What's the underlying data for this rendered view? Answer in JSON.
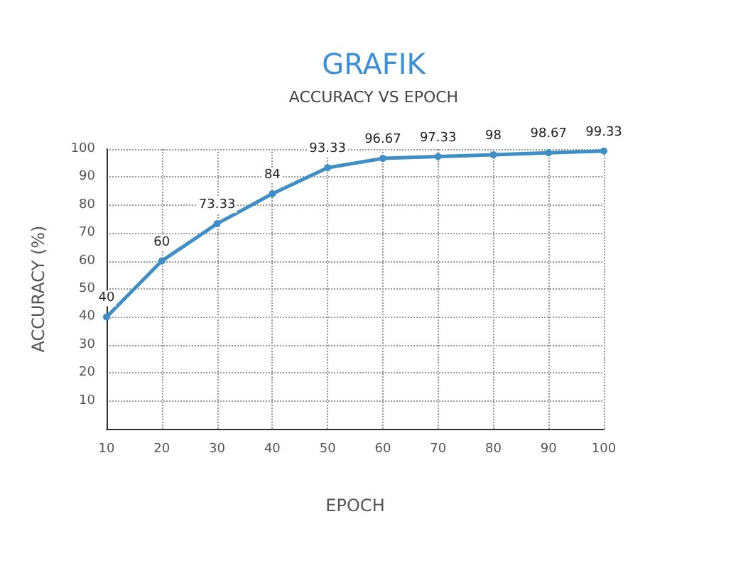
{
  "chart_data": {
    "type": "line",
    "title": "GRAFIK",
    "subtitle": "ACCURACY VS EPOCH",
    "xlabel": "EPOCH",
    "ylabel": "ACCURACY (%)",
    "x": [
      10,
      20,
      30,
      40,
      50,
      60,
      70,
      80,
      90,
      100
    ],
    "series": [
      {
        "color": "#3f8fc6",
        "values": [
          40,
          60,
          73.33,
          84,
          93.33,
          96.67,
          97.33,
          98,
          98.67,
          99.33
        ]
      }
    ],
    "xlim": [
      10,
      100
    ],
    "xticks": [
      10,
      20,
      30,
      40,
      50,
      60,
      70,
      80,
      90,
      100
    ],
    "ylim": [
      0,
      100
    ],
    "yticks": [
      10,
      20,
      30,
      40,
      50,
      60,
      70,
      80,
      90,
      100
    ],
    "grid": true,
    "marker": "circle",
    "line_style": "solid",
    "data_labels": true
  }
}
